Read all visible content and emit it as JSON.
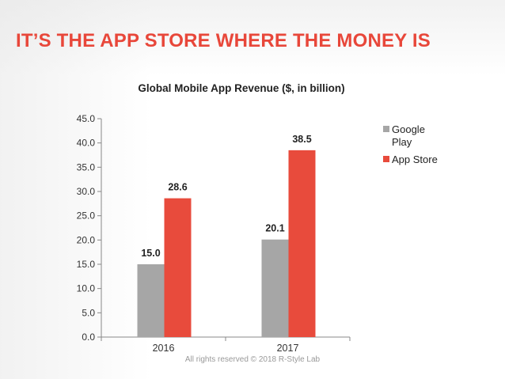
{
  "slide": {
    "title": "IT’S THE APP STORE WHERE THE MONEY IS",
    "footer": "All rights reserved © 2018 R-Style Lab"
  },
  "colors": {
    "title": "#e8473a",
    "google_play": "#a6a6a6",
    "app_store": "#e84b3c"
  },
  "chart_data": {
    "type": "bar",
    "title": "Global Mobile App Revenue ($, in billion)",
    "categories": [
      "2016",
      "2017"
    ],
    "series": [
      {
        "name": "Google Play",
        "values": [
          15.0,
          20.1
        ],
        "labels": [
          "15.0",
          "20.1"
        ],
        "color": "#a6a6a6"
      },
      {
        "name": "App Store",
        "values": [
          28.6,
          38.5
        ],
        "labels": [
          "28.6",
          "38.5"
        ],
        "color": "#e84b3c"
      }
    ],
    "ylim": [
      0,
      45
    ],
    "yticks": [
      "0.0",
      "5.0",
      "10.0",
      "15.0",
      "20.0",
      "25.0",
      "30.0",
      "35.0",
      "40.0",
      "45.0"
    ],
    "legend": "right",
    "grid": false
  }
}
